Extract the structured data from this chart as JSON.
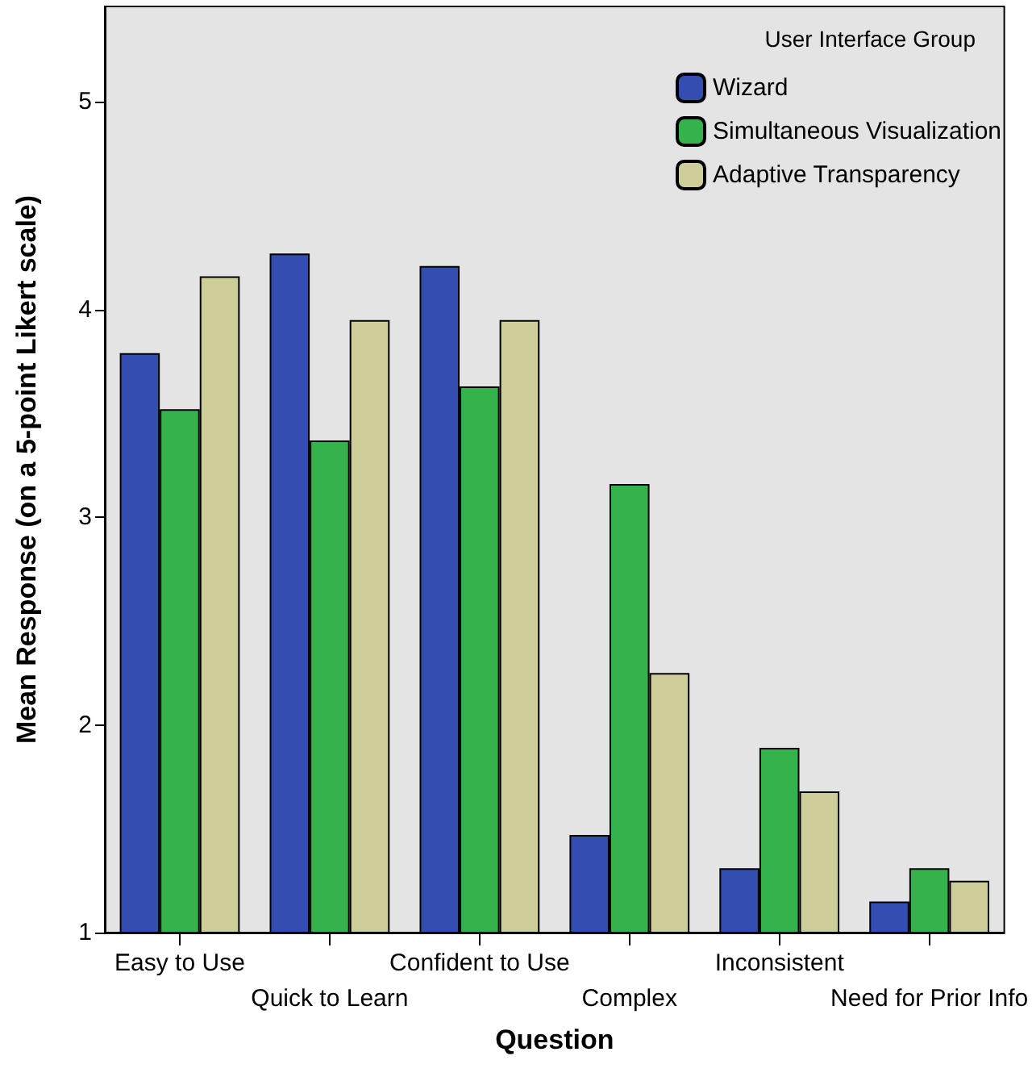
{
  "chart_data": {
    "type": "bar",
    "xlabel": "Question",
    "ylabel": "Mean Response (on a 5-point Likert scale)",
    "legend_title": "User Interface Group",
    "categories": [
      "Easy to Use",
      "Quick to Learn",
      "Confident to Use",
      "Complex",
      "Inconsistent",
      "Need for Prior Info"
    ],
    "series": [
      {
        "name": "Wizard",
        "color": "#334db0",
        "values": [
          3.79,
          4.27,
          4.21,
          1.47,
          1.31,
          1.15
        ]
      },
      {
        "name": "Simultaneous Visualization",
        "color": "#35b24c",
        "values": [
          3.52,
          3.37,
          3.63,
          3.16,
          1.89,
          1.31
        ]
      },
      {
        "name": "Adaptive Transparency",
        "color": "#cdcd99",
        "values": [
          4.16,
          3.95,
          3.95,
          2.25,
          1.68,
          1.25
        ]
      }
    ],
    "ylim": [
      1,
      5.46
    ],
    "yticks": [
      1,
      2,
      3,
      4,
      5
    ],
    "grid": false,
    "legend": "top right"
  }
}
